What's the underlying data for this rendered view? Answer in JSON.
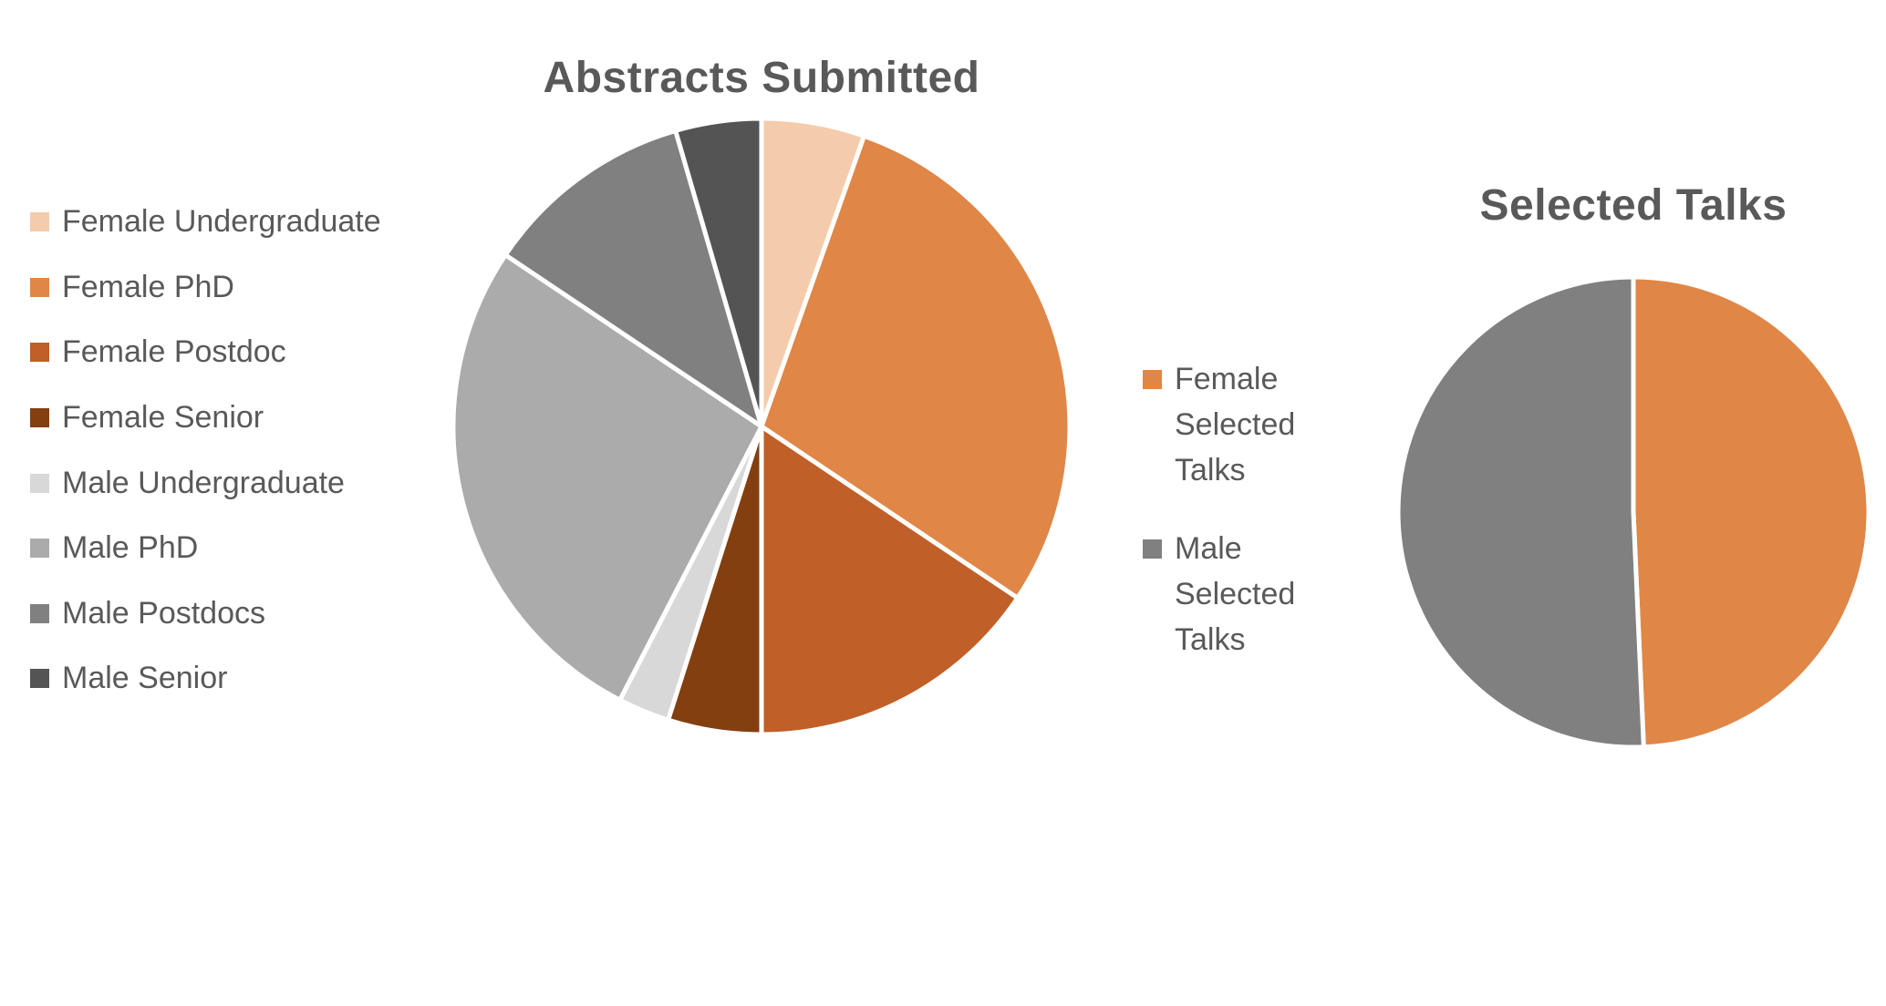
{
  "page": {
    "background_color": "#ffffff",
    "text_color": "#595959",
    "divider_color": "#ffffff"
  },
  "chart_data": [
    {
      "type": "pie",
      "title": "Abstracts Submitted",
      "legend_position": "left",
      "direction": "clockwise",
      "start_angle_deg": 0,
      "categories": [
        "Female Undergraduate",
        "Female PhD",
        "Female Postdoc",
        "Female Senior",
        "Male Undergraduate",
        "Male PhD",
        "Male Postdocs",
        "Male Senior"
      ],
      "values": [
        5.4,
        29.0,
        15.6,
        4.9,
        2.7,
        26.8,
        11.1,
        4.5
      ],
      "colors": [
        "#F4CCAC",
        "#E08646",
        "#C05F28",
        "#833F10",
        "#D9D8D8",
        "#ACABAB",
        "#808080",
        "#545454"
      ]
    },
    {
      "type": "pie",
      "title": "Selected Talks",
      "legend_position": "left",
      "direction": "clockwise",
      "start_angle_deg": 0,
      "categories": [
        "Female Selected Talks",
        "Male Selected Talks"
      ],
      "values": [
        49.3,
        50.7
      ],
      "colors": [
        "#E08646",
        "#808080"
      ]
    }
  ]
}
